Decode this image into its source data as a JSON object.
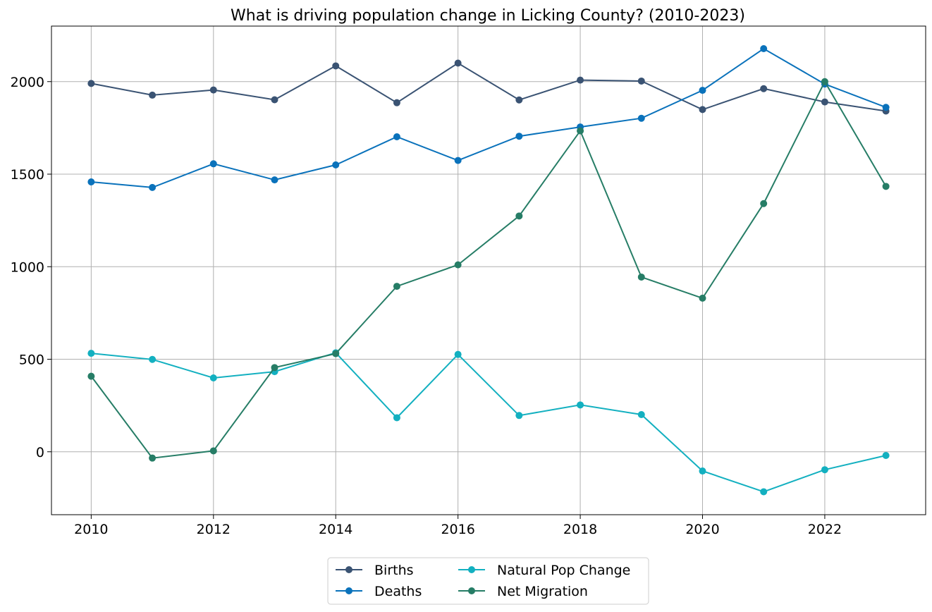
{
  "chart_data": {
    "type": "line",
    "title": "What is driving population change in Licking County? (2010-2023)",
    "xlabel": "",
    "ylabel": "",
    "x": [
      2010,
      2011,
      2012,
      2013,
      2014,
      2015,
      2016,
      2017,
      2018,
      2019,
      2020,
      2021,
      2022,
      2023
    ],
    "xlim": [
      2009.35,
      2023.65
    ],
    "ylim": [
      -340,
      2300
    ],
    "x_ticks": [
      2010,
      2012,
      2014,
      2016,
      2018,
      2020,
      2022
    ],
    "y_ticks": [
      0,
      500,
      1000,
      1500,
      2000
    ],
    "grid": true,
    "legend_position": "bottom-center",
    "series": [
      {
        "name": "Births",
        "color": "#3a5373",
        "values": [
          1990,
          1927,
          1955,
          1902,
          2085,
          1886,
          2100,
          1901,
          2008,
          2003,
          1849,
          1962,
          1890,
          1841
        ]
      },
      {
        "name": "Deaths",
        "color": "#0a72bb",
        "values": [
          1458,
          1428,
          1556,
          1469,
          1550,
          1702,
          1574,
          1705,
          1755,
          1802,
          1953,
          2178,
          1987,
          1861
        ]
      },
      {
        "name": "Natural Pop Change",
        "color": "#13b0c0",
        "values": [
          532,
          499,
          399,
          433,
          535,
          184,
          526,
          196,
          253,
          201,
          -104,
          -216,
          -97,
          -20
        ]
      },
      {
        "name": "Net Migration",
        "color": "#267d66",
        "values": [
          408,
          -34,
          5,
          455,
          530,
          894,
          1010,
          1274,
          1734,
          944,
          830,
          1341,
          2000,
          1434
        ]
      }
    ]
  }
}
